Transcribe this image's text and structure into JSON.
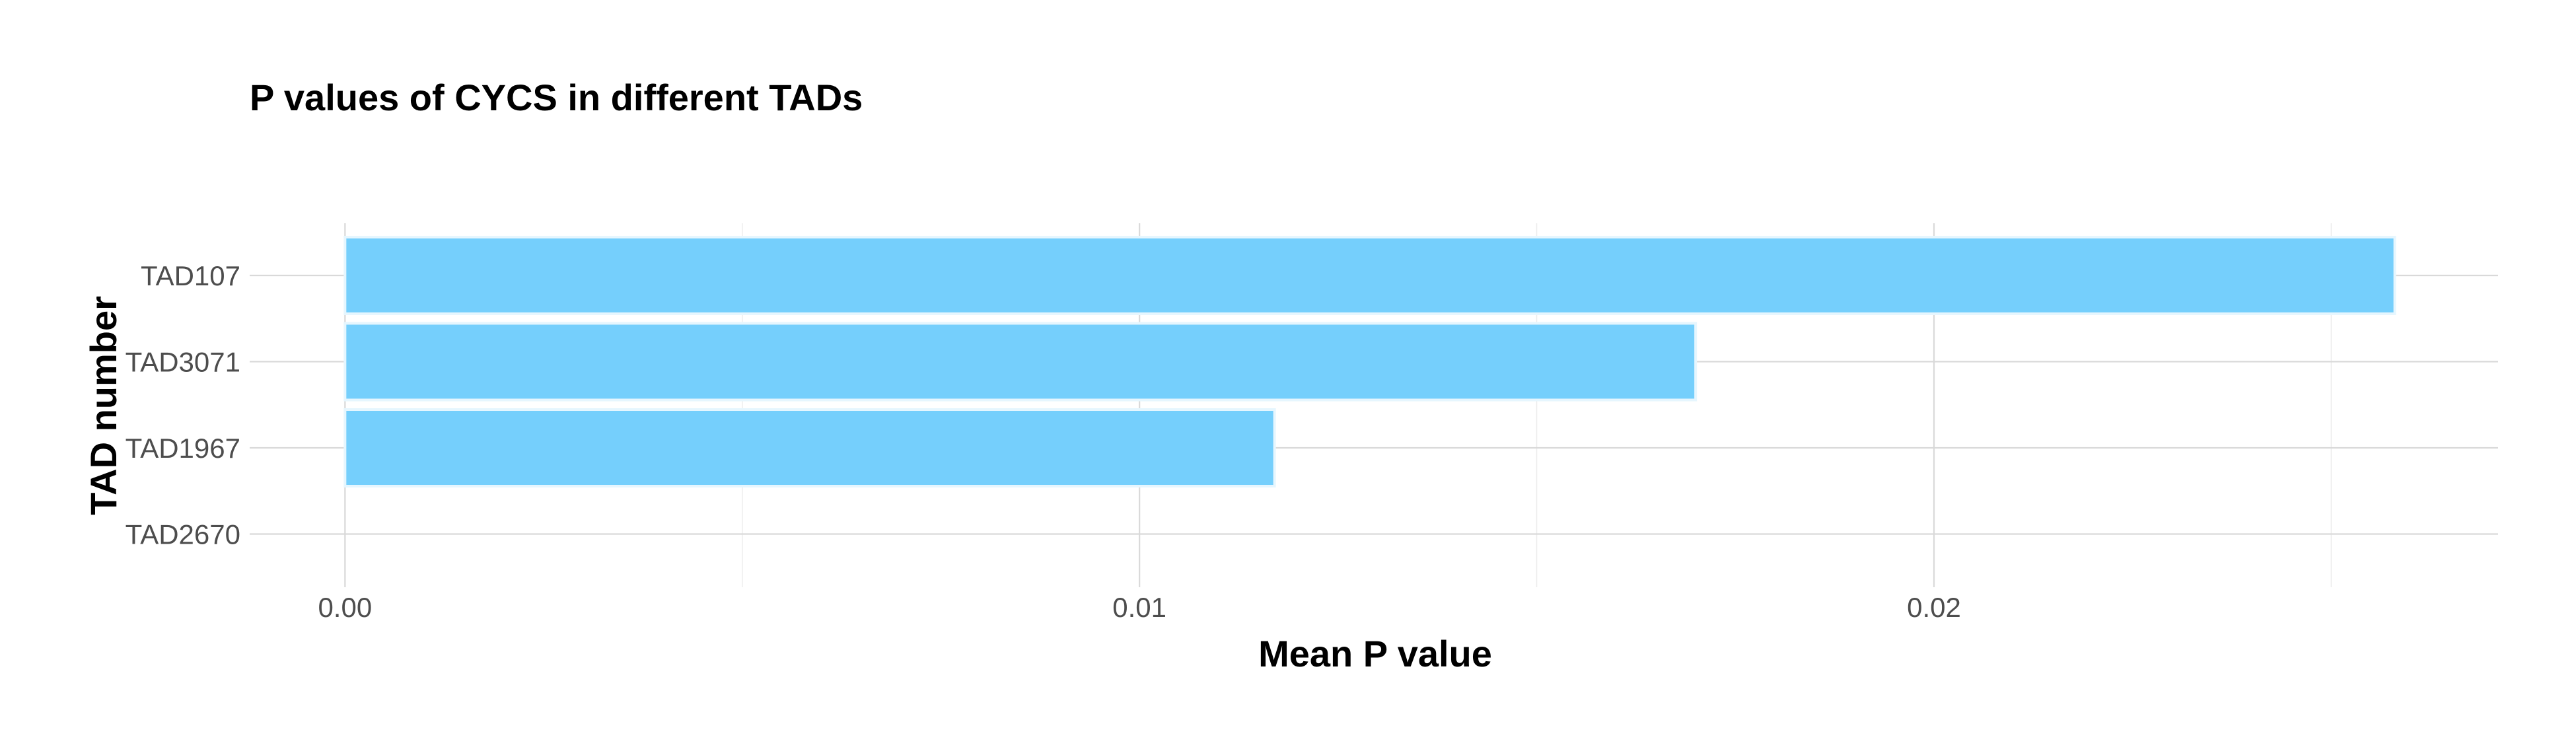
{
  "chart_data": {
    "type": "bar",
    "orientation": "horizontal",
    "title": "P values of CYCS in different TADs",
    "xlabel": "Mean P value",
    "ylabel": "TAD number",
    "categories": [
      "TAD107",
      "TAD3071",
      "TAD1967",
      "TAD2670"
    ],
    "values": [
      0.0258,
      0.017,
      0.0117,
      0.0
    ],
    "xlim": [
      -0.0012,
      0.0271
    ],
    "xticks": [
      0.0,
      0.01,
      0.02
    ],
    "xtick_labels": [
      "0.00",
      "0.01",
      "0.02"
    ],
    "bar_color": "#75cffc",
    "bar_outline_color": "#e6f6fe",
    "grid": true,
    "legend": "none"
  }
}
